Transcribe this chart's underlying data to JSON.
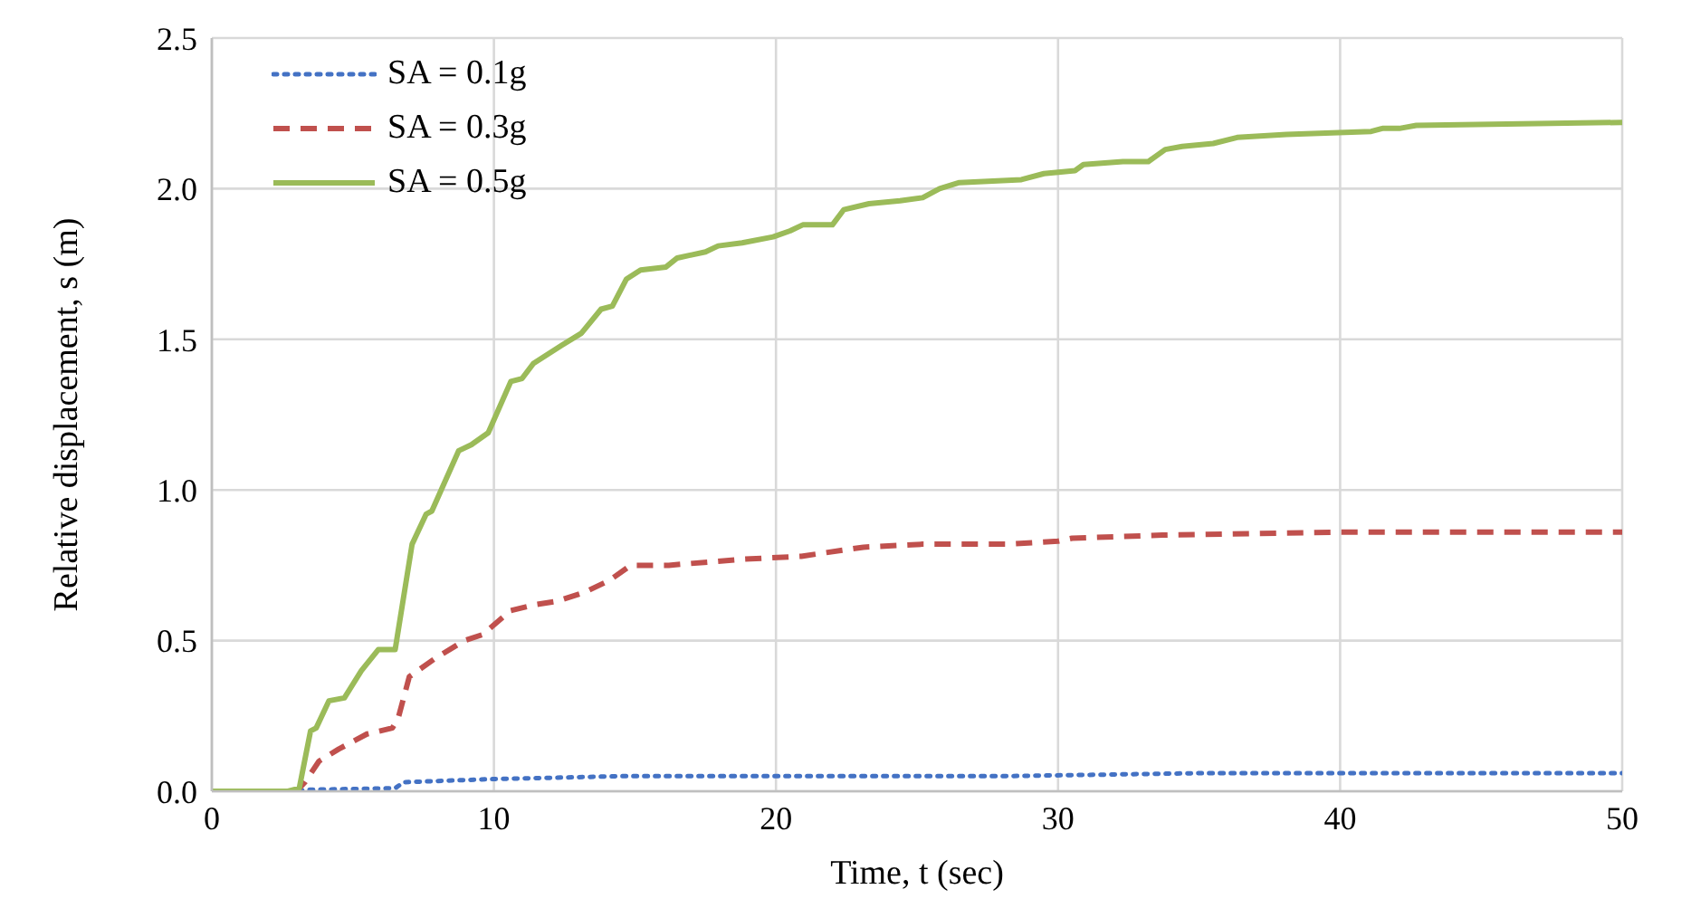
{
  "chart_data": {
    "type": "line",
    "xlabel": "Time, t (sec)",
    "ylabel": "Relative displacement, s (m)",
    "xlim": [
      0,
      50
    ],
    "xticks": [
      0,
      10,
      20,
      30,
      40,
      50
    ],
    "ylim": [
      0,
      2.5
    ],
    "yticks": [
      {
        "value": 0,
        "label": "0.0"
      },
      {
        "value": 0.5,
        "label": "0.5"
      },
      {
        "value": 1,
        "label": "1.0"
      },
      {
        "value": 1.5,
        "label": "1.5"
      },
      {
        "value": 2,
        "label": "2.0"
      },
      {
        "value": 2.5,
        "label": "2.5"
      }
    ],
    "grid": true,
    "legend": "top left",
    "marker": "none",
    "series": [
      {
        "name": "SA = 0.1g",
        "color": "#4472c4",
        "line_style": "dotted",
        "x": [
          0,
          3.0,
          3.4,
          6.5,
          6.8,
          9.8,
          14.5,
          20,
          28,
          35,
          50
        ],
        "values": [
          0,
          0,
          0.005,
          0.01,
          0.03,
          0.04,
          0.05,
          0.05,
          0.05,
          0.06,
          0.06
        ]
      },
      {
        "name": "SA = 0.3g",
        "color": "#c0504d",
        "line_style": "dashed",
        "x": [
          0,
          3.0,
          3.3,
          3.8,
          4.5,
          5.1,
          5.5,
          6.4,
          6.6,
          7.0,
          7.9,
          8.95,
          9.6,
          10.6,
          11.5,
          12.2,
          13.2,
          14.1,
          14.85,
          16.2,
          18.8,
          20.9,
          23.1,
          25.2,
          28.2,
          30,
          30.5,
          33.7,
          40,
          50
        ],
        "values": [
          0,
          0,
          0.03,
          0.1,
          0.14,
          0.17,
          0.19,
          0.21,
          0.24,
          0.38,
          0.44,
          0.5,
          0.52,
          0.6,
          0.62,
          0.63,
          0.66,
          0.7,
          0.75,
          0.75,
          0.77,
          0.78,
          0.81,
          0.82,
          0.82,
          0.83,
          0.84,
          0.85,
          0.86,
          0.86
        ]
      },
      {
        "name": "SA = 0.5g",
        "color": "#9bbb59",
        "line_style": "solid",
        "x": [
          0,
          2.7,
          3.1,
          3.5,
          3.7,
          4.15,
          4.7,
          5.3,
          5.9,
          6.5,
          7.1,
          7.6,
          7.8,
          8.75,
          9.2,
          9.8,
          10.6,
          11.0,
          11.4,
          12.4,
          13.1,
          13.8,
          14.2,
          14.7,
          15.2,
          16.1,
          16.5,
          17.5,
          17.95,
          18.8,
          19.9,
          20.5,
          20.95,
          22.0,
          22.4,
          23.3,
          24.4,
          25.2,
          25.8,
          26.5,
          28.7,
          29.5,
          30.6,
          30.9,
          32.3,
          33.2,
          33.8,
          34.4,
          35.5,
          36.35,
          38.1,
          41.1,
          41.5,
          42.1,
          42.7,
          50
        ],
        "values": [
          0,
          0,
          0.01,
          0.2,
          0.21,
          0.3,
          0.31,
          0.4,
          0.47,
          0.47,
          0.82,
          0.92,
          0.93,
          1.13,
          1.15,
          1.19,
          1.36,
          1.37,
          1.42,
          1.48,
          1.52,
          1.6,
          1.61,
          1.7,
          1.73,
          1.74,
          1.77,
          1.79,
          1.81,
          1.82,
          1.84,
          1.86,
          1.88,
          1.88,
          1.93,
          1.95,
          1.96,
          1.97,
          2.0,
          2.02,
          2.03,
          2.05,
          2.06,
          2.08,
          2.09,
          2.09,
          2.13,
          2.14,
          2.15,
          2.17,
          2.18,
          2.19,
          2.2,
          2.2,
          2.21,
          2.22
        ]
      }
    ]
  }
}
